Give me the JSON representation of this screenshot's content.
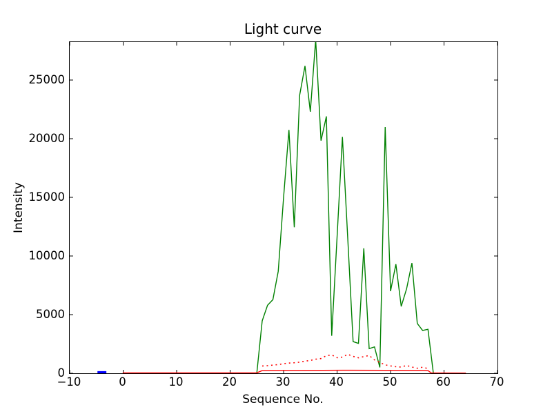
{
  "figure": {
    "title": "Light curve",
    "background_color": "#ffffff",
    "spine_color": "#000000"
  },
  "chart_data": {
    "type": "line",
    "title": "Light curve",
    "xlabel": "Sequence No.",
    "ylabel": "Intensity",
    "xlim": [
      -10,
      70
    ],
    "ylim": [
      0,
      28235
    ],
    "xticks": [
      -10,
      0,
      10,
      20,
      30,
      40,
      50,
      60,
      70
    ],
    "yticks": [
      0,
      5000,
      10000,
      15000,
      20000,
      25000
    ],
    "grid": false,
    "legend_position": "none",
    "tick_direction": "in",
    "series": [
      {
        "name": "green-line",
        "color": "#008000",
        "style": "solid",
        "width": 1.4,
        "x": [
          25,
          26,
          27,
          28,
          29,
          30,
          31,
          32,
          33,
          34,
          35,
          36,
          37,
          38,
          39,
          40,
          41,
          42,
          43,
          44,
          45,
          46,
          47,
          48,
          49,
          50,
          51,
          52,
          53,
          54,
          55,
          56,
          57,
          58
        ],
        "y": [
          50,
          4470,
          5800,
          6280,
          8700,
          15000,
          20750,
          12450,
          23700,
          26200,
          22300,
          28450,
          19830,
          21900,
          3200,
          11600,
          20150,
          11500,
          2700,
          2550,
          10650,
          2100,
          2250,
          500,
          21000,
          7000,
          9300,
          5700,
          7200,
          9400,
          4250,
          3650,
          3750,
          30
        ]
      },
      {
        "name": "red-dotted-line",
        "color": "#ff0000",
        "style": "dotted",
        "width": 1.6,
        "x": [
          26,
          27,
          28,
          29,
          30,
          31,
          32,
          33,
          34,
          35,
          36,
          37,
          38,
          39,
          40,
          41,
          42,
          43,
          44,
          45,
          46,
          47,
          48,
          49,
          50,
          51,
          52,
          53,
          54,
          55,
          56,
          57
        ],
        "y": [
          620,
          650,
          700,
          740,
          820,
          870,
          900,
          950,
          1030,
          1100,
          1200,
          1260,
          1500,
          1570,
          1330,
          1380,
          1620,
          1440,
          1320,
          1420,
          1520,
          1140,
          920,
          720,
          630,
          560,
          530,
          670,
          530,
          430,
          520,
          400
        ]
      },
      {
        "name": "red-solid-line",
        "color": "#ff0000",
        "style": "solid",
        "width": 1.4,
        "x": [
          0,
          24,
          25,
          26,
          41,
          56,
          57,
          57.6,
          64
        ],
        "y": [
          30,
          30,
          40,
          230,
          260,
          245,
          230,
          30,
          20
        ]
      },
      {
        "name": "blue-segment",
        "color": "#0000ff",
        "style": "solid",
        "width": 3.2,
        "x": [
          -4.6,
          -3.35
        ],
        "y": [
          90,
          90
        ]
      }
    ]
  }
}
